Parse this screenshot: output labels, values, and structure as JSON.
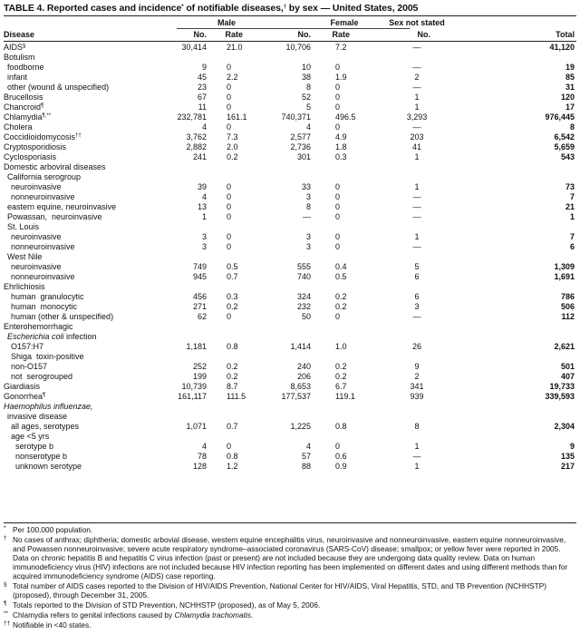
{
  "title": {
    "text": "TABLE 4. Reported cases and incidence",
    "mark1": "*",
    "mid": " of notifiable diseases,",
    "mark2": "†",
    "end": " by sex — United States, 2005"
  },
  "headers": {
    "disease": "Disease",
    "male": "Male",
    "female": "Female",
    "not_stated": "Sex not stated",
    "no": "No.",
    "rate": "Rate",
    "total": "Total"
  },
  "rows": [
    {
      "label": "AIDS",
      "sup": "§",
      "indent": 0,
      "mno": "30,414",
      "mrate": "21.0",
      "fno": "10,706",
      "frate": "7.2",
      "ns": "—",
      "total": "41,120"
    },
    {
      "label": "Botulism",
      "indent": 0
    },
    {
      "label": "foodborne",
      "indent": 1,
      "mno": "9",
      "mrate": "0",
      "fno": "10",
      "frate": "0",
      "ns": "—",
      "total": "19"
    },
    {
      "label": "infant",
      "indent": 1,
      "mno": "45",
      "mrate": "2.2",
      "fno": "38",
      "frate": "1.9",
      "ns": "2",
      "total": "85"
    },
    {
      "label": "other (wound & unspecified)",
      "indent": 1,
      "mno": "23",
      "mrate": "0",
      "fno": "8",
      "frate": "0",
      "ns": "—",
      "total": "31"
    },
    {
      "label": "Brucellosis",
      "indent": 0,
      "mno": "67",
      "mrate": "0",
      "fno": "52",
      "frate": "0",
      "ns": "1",
      "total": "120"
    },
    {
      "label": "Chancroid",
      "sup": "¶",
      "indent": 0,
      "mno": "11",
      "mrate": "0",
      "fno": "5",
      "frate": "0",
      "ns": "1",
      "total": "17"
    },
    {
      "label": "Chlamydia",
      "sup": "¶,**",
      "indent": 0,
      "mno": "232,781",
      "mrate": "161.1",
      "fno": "740,371",
      "frate": "496.5",
      "ns": "3,293",
      "total": "976,445"
    },
    {
      "label": "Cholera",
      "indent": 0,
      "mno": "4",
      "mrate": "0",
      "fno": "4",
      "frate": "0",
      "ns": "—",
      "total": "8"
    },
    {
      "label": "Coccidioidomycosis",
      "sup": "††",
      "indent": 0,
      "mno": "3,762",
      "mrate": "7.3",
      "fno": "2,577",
      "frate": "4.9",
      "ns": "203",
      "total": "6,542"
    },
    {
      "label": "Cryptosporidiosis",
      "indent": 0,
      "mno": "2,882",
      "mrate": "2.0",
      "fno": "2,736",
      "frate": "1.8",
      "ns": "41",
      "total": "5,659"
    },
    {
      "label": "Cyclosporiasis",
      "indent": 0,
      "mno": "241",
      "mrate": "0.2",
      "fno": "301",
      "frate": "0.3",
      "ns": "1",
      "total": "543"
    },
    {
      "label": "Domestic arboviral diseases",
      "indent": 0
    },
    {
      "label": "California serogroup",
      "indent": 1
    },
    {
      "label": "neuroinvasive",
      "indent": 2,
      "mno": "39",
      "mrate": "0",
      "fno": "33",
      "frate": "0",
      "ns": "1",
      "total": "73"
    },
    {
      "label": "nonneuroinvasive",
      "indent": 2,
      "mno": "4",
      "mrate": "0",
      "fno": "3",
      "frate": "0",
      "ns": "—",
      "total": "7"
    },
    {
      "label": "eastern equine, neuroinvasive",
      "indent": 1,
      "mno": "13",
      "mrate": "0",
      "fno": "8",
      "frate": "0",
      "ns": "—",
      "total": "21"
    },
    {
      "label": "Powassan,  neuroinvasive",
      "indent": 1,
      "mno": "1",
      "mrate": "0",
      "fno": "—",
      "frate": "0",
      "ns": "—",
      "total": "1"
    },
    {
      "label": "St. Louis",
      "indent": 1
    },
    {
      "label": "neuroinvasive",
      "indent": 2,
      "mno": "3",
      "mrate": "0",
      "fno": "3",
      "frate": "0",
      "ns": "1",
      "total": "7"
    },
    {
      "label": "nonneuroinvasive",
      "indent": 2,
      "mno": "3",
      "mrate": "0",
      "fno": "3",
      "frate": "0",
      "ns": "—",
      "total": "6"
    },
    {
      "label": "West Nile",
      "indent": 1
    },
    {
      "label": "neuroinvasive",
      "indent": 2,
      "mno": "749",
      "mrate": "0.5",
      "fno": "555",
      "frate": "0.4",
      "ns": "5",
      "total": "1,309"
    },
    {
      "label": "nonneuroinvasive",
      "indent": 2,
      "mno": "945",
      "mrate": "0.7",
      "fno": "740",
      "frate": "0.5",
      "ns": "6",
      "total": "1,691"
    },
    {
      "label": "Ehrlichiosis",
      "indent": 0
    },
    {
      "label": "human  granulocytic",
      "indent": 2,
      "mno": "456",
      "mrate": "0.3",
      "fno": "324",
      "frate": "0.2",
      "ns": "6",
      "total": "786"
    },
    {
      "label": "human  monocytic",
      "indent": 2,
      "mno": "271",
      "mrate": "0.2",
      "fno": "232",
      "frate": "0.2",
      "ns": "3",
      "total": "506"
    },
    {
      "label": "human (other & unspecified)",
      "indent": 2,
      "mno": "62",
      "mrate": "0",
      "fno": "50",
      "frate": "0",
      "ns": "—",
      "total": "112"
    },
    {
      "label": "Enterohemorrhagic",
      "indent": 0
    },
    {
      "italic": "Escherichia coli",
      "label": " infection",
      "indent": 1
    },
    {
      "label": "O157:H7",
      "indent": 2,
      "mno": "1,181",
      "mrate": "0.8",
      "fno": "1,414",
      "frate": "1.0",
      "ns": "26",
      "total": "2,621"
    },
    {
      "label": "Shiga  toxin-positive",
      "indent": 2
    },
    {
      "label": "non-O157",
      "indent": 2,
      "mno": "252",
      "mrate": "0.2",
      "fno": "240",
      "frate": "0.2",
      "ns": "9",
      "total": "501"
    },
    {
      "label": "not  serogrouped",
      "indent": 2,
      "mno": "199",
      "mrate": "0.2",
      "fno": "206",
      "frate": "0.2",
      "ns": "2",
      "total": "407"
    },
    {
      "label": "Giardiasis",
      "indent": 0,
      "mno": "10,739",
      "mrate": "8.7",
      "fno": "8,653",
      "frate": "6.7",
      "ns": "341",
      "total": "19,733"
    },
    {
      "label": "Gonorrhea",
      "sup": "¶",
      "indent": 0,
      "mno": "161,117",
      "mrate": "111.5",
      "fno": "177,537",
      "frate": "119.1",
      "ns": "939",
      "total": "339,593"
    },
    {
      "italic": "Haemophilus influenzae,",
      "indent": 0
    },
    {
      "label": "invasive disease",
      "indent": 1
    },
    {
      "label": "all ages, serotypes",
      "indent": 2,
      "mno": "1,071",
      "mrate": "0.7",
      "fno": "1,225",
      "frate": "0.8",
      "ns": "8",
      "total": "2,304"
    },
    {
      "label": "age <5 yrs",
      "indent": 2
    },
    {
      "label": "serotype b",
      "indent": 3,
      "mno": "4",
      "mrate": "0",
      "fno": "4",
      "frate": "0",
      "ns": "1",
      "total": "9"
    },
    {
      "label": "nonserotype b",
      "indent": 3,
      "mno": "78",
      "mrate": "0.8",
      "fno": "57",
      "frate": "0.6",
      "ns": "—",
      "total": "135"
    },
    {
      "label": "unknown serotype",
      "indent": 3,
      "mno": "128",
      "mrate": "1.2",
      "fno": "88",
      "frate": "0.9",
      "ns": "1",
      "total": "217"
    }
  ],
  "footnotes": [
    {
      "mark": "*",
      "text": "Per 100,000 population."
    },
    {
      "mark": "†",
      "text": "No cases of anthrax; diphtheria; domestic arbovial disease, western equine encephalitis virus, neuroinvasive and nonneuroinvasive, eastern equine nonneuroinvasive, and Powassen nonneuroinvasive; severe acute respiratory syndrome–associated coronavirus (SARS-CoV) disease; smallpox; or yellow fever were reported in 2005. Data on chronic hepatitis B and hepatitis C virus infection (past or present) are not included because they are undergoing data quality review. Data on human immunodeficiency virus (HIV) infections are not included because HIV infection reporting has been implemented on different dates and using different methods than for acquired immunodeficiency syndrome (AIDS) case reporting."
    },
    {
      "mark": "§",
      "text": "Total number of AIDS cases reported to the Division of HIV/AIDS Prevention, National Center for HIV/AIDS, Viral Hepatitis, STD, and TB Prevention (NCHHSTP) (proposed), through December 31, 2005."
    },
    {
      "mark": "¶",
      "text": "Totals reported to the Division of STD Prevention, NCHHSTP (proposed), as of May 5, 2006."
    },
    {
      "mark": "**",
      "text": "Chlamydia refers to genital infections caused by ",
      "italic": "Chlamydia trachomatis",
      "end": "."
    },
    {
      "mark": "††",
      "text": "Notifiable in <40 states."
    }
  ]
}
